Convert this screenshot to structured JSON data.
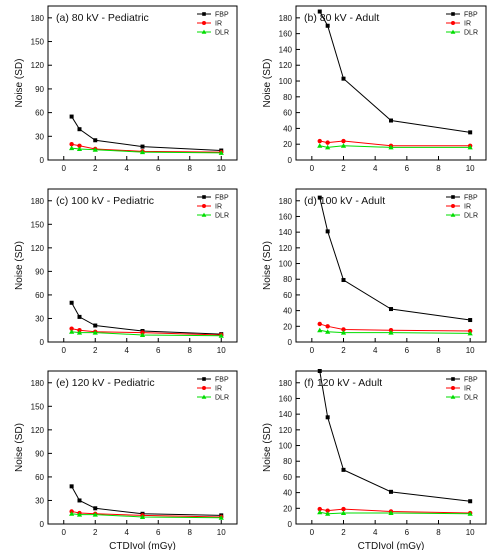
{
  "colors": {
    "FBP": "#000000",
    "IR": "#ff0000",
    "DLR": "#00dd00"
  },
  "chart_data": [
    {
      "type": "line",
      "title": "(a) 80 kV - Pediatric",
      "xlabel": "",
      "ylabel": "Noise (SD)",
      "xlim": [
        -1,
        11
      ],
      "ylim": [
        0,
        195
      ],
      "xticks": [
        0,
        2,
        4,
        6,
        8,
        10
      ],
      "yticks": [
        0,
        30,
        60,
        90,
        120,
        150,
        180
      ],
      "legend": "top-right",
      "x": [
        0.5,
        1,
        2,
        5,
        10
      ],
      "series": [
        {
          "name": "FBP",
          "values": [
            55,
            39,
            25,
            17,
            12
          ]
        },
        {
          "name": "IR",
          "values": [
            20,
            18,
            14,
            11,
            10
          ]
        },
        {
          "name": "DLR",
          "values": [
            15,
            14,
            13,
            10,
            9
          ]
        }
      ]
    },
    {
      "type": "line",
      "title": "(b) 80 kV - Adult",
      "xlabel": "",
      "ylabel": "Noise (SD)",
      "xlim": [
        -1,
        11
      ],
      "ylim": [
        0,
        195
      ],
      "xticks": [
        0,
        2,
        4,
        6,
        8,
        10
      ],
      "yticks": [
        0,
        20,
        40,
        60,
        80,
        100,
        120,
        140,
        160,
        180
      ],
      "legend": "top-right",
      "x": [
        0.5,
        1,
        2,
        5,
        10
      ],
      "series": [
        {
          "name": "FBP",
          "values": [
            188,
            170,
            103,
            50,
            35
          ]
        },
        {
          "name": "IR",
          "values": [
            24,
            22,
            24,
            18,
            18
          ]
        },
        {
          "name": "DLR",
          "values": [
            18,
            16,
            18,
            16,
            16
          ]
        }
      ]
    },
    {
      "type": "line",
      "title": "(c) 100 kV - Pediatric",
      "xlabel": "",
      "ylabel": "Noise (SD)",
      "xlim": [
        -1,
        11
      ],
      "ylim": [
        0,
        195
      ],
      "xticks": [
        0,
        2,
        4,
        6,
        8,
        10
      ],
      "yticks": [
        0,
        30,
        60,
        90,
        120,
        150,
        180
      ],
      "legend": "top-right",
      "x": [
        0.5,
        1,
        2,
        5,
        10
      ],
      "series": [
        {
          "name": "FBP",
          "values": [
            50,
            32,
            21,
            14,
            10
          ]
        },
        {
          "name": "IR",
          "values": [
            17,
            15,
            13,
            12,
            9
          ]
        },
        {
          "name": "DLR",
          "values": [
            13,
            12,
            12,
            9,
            8
          ]
        }
      ]
    },
    {
      "type": "line",
      "title": "(d) 100 kV - Adult",
      "xlabel": "",
      "ylabel": "Noise (SD)",
      "xlim": [
        -1,
        11
      ],
      "ylim": [
        0,
        195
      ],
      "xticks": [
        0,
        2,
        4,
        6,
        8,
        10
      ],
      "yticks": [
        0,
        20,
        40,
        60,
        80,
        100,
        120,
        140,
        160,
        180
      ],
      "legend": "top-right",
      "x": [
        0.5,
        1,
        2,
        5,
        10
      ],
      "series": [
        {
          "name": "FBP",
          "values": [
            184,
            141,
            79,
            42,
            28
          ]
        },
        {
          "name": "IR",
          "values": [
            23,
            20,
            16,
            15,
            14
          ]
        },
        {
          "name": "DLR",
          "values": [
            15,
            13,
            12,
            12,
            11
          ]
        }
      ]
    },
    {
      "type": "line",
      "title": "(e) 120 kV - Pediatric",
      "xlabel": "CTDIvol (mGy)",
      "ylabel": "Noise (SD)",
      "xlim": [
        -1,
        11
      ],
      "ylim": [
        0,
        195
      ],
      "xticks": [
        0,
        2,
        4,
        6,
        8,
        10
      ],
      "yticks": [
        0,
        30,
        60,
        90,
        120,
        150,
        180
      ],
      "legend": "top-right",
      "x": [
        0.5,
        1,
        2,
        5,
        10
      ],
      "series": [
        {
          "name": "FBP",
          "values": [
            48,
            30,
            20,
            13,
            11
          ]
        },
        {
          "name": "IR",
          "values": [
            16,
            14,
            13,
            11,
            9
          ]
        },
        {
          "name": "DLR",
          "values": [
            13,
            12,
            12,
            9,
            8
          ]
        }
      ]
    },
    {
      "type": "line",
      "title": "(f) 120 kV - Adult",
      "xlabel": "CTDIvol (mGy)",
      "ylabel": "Noise (SD)",
      "xlim": [
        -1,
        11
      ],
      "ylim": [
        0,
        195
      ],
      "xticks": [
        0,
        2,
        4,
        6,
        8,
        10
      ],
      "yticks": [
        0,
        20,
        40,
        60,
        80,
        100,
        120,
        140,
        160,
        180
      ],
      "legend": "top-right",
      "x": [
        0.5,
        1,
        2,
        5,
        10
      ],
      "series": [
        {
          "name": "FBP",
          "values": [
            195,
            136,
            69,
            41,
            29
          ]
        },
        {
          "name": "IR",
          "values": [
            19,
            17,
            19,
            16,
            14
          ]
        },
        {
          "name": "DLR",
          "values": [
            15,
            13,
            14,
            14,
            13
          ]
        }
      ]
    }
  ]
}
